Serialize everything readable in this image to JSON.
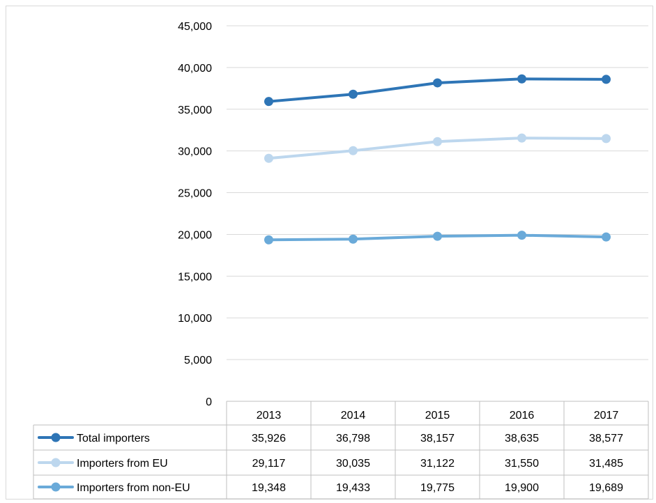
{
  "chart_data": {
    "type": "line",
    "title": "",
    "xlabel": "",
    "ylabel": "",
    "categories": [
      "2013",
      "2014",
      "2015",
      "2016",
      "2017"
    ],
    "ylim": [
      0,
      45000
    ],
    "yticks": [
      0,
      5000,
      10000,
      15000,
      20000,
      25000,
      30000,
      35000,
      40000,
      45000
    ],
    "ytick_labels": [
      "0",
      "5,000",
      "10,000",
      "15,000",
      "20,000",
      "25,000",
      "30,000",
      "35,000",
      "40,000",
      "45,000"
    ],
    "grid": true,
    "legend": "data-table-left",
    "series": [
      {
        "name": "Total importers",
        "color": "#2e75b6",
        "values": [
          35926,
          36798,
          38157,
          38635,
          38577
        ],
        "labels": [
          "35,926",
          "36,798",
          "38,157",
          "38,635",
          "38,577"
        ]
      },
      {
        "name": "Importers from EU",
        "color": "#bdd7ee",
        "values": [
          29117,
          30035,
          31122,
          31550,
          31485
        ],
        "labels": [
          "29,117",
          "30,035",
          "31,122",
          "31,550",
          "31,485"
        ]
      },
      {
        "name": "Importers from non-EU",
        "color": "#6aaad9",
        "values": [
          19348,
          19433,
          19775,
          19900,
          19689
        ],
        "labels": [
          "19,348",
          "19,433",
          "19,775",
          "19,900",
          "19,689"
        ]
      }
    ]
  }
}
